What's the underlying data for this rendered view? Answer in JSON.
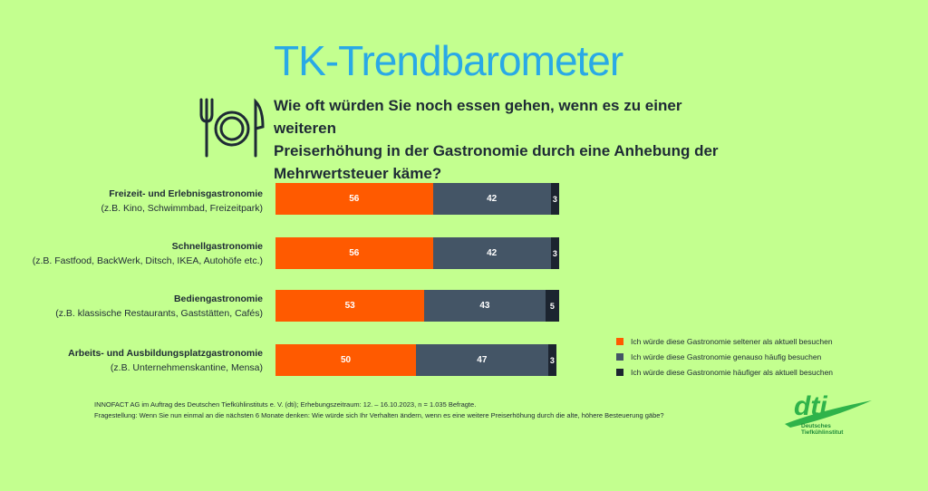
{
  "title": "TK-Trendbarometer",
  "question_lines": [
    "Wie oft würden Sie noch essen gehen, wenn es zu einer weiteren",
    "Preiserhöhung in der Gastronomie durch eine Anhebung der",
    "Mehrwertsteuer käme?"
  ],
  "icon": "plate-fork-knife-icon",
  "colors": {
    "background": "#c3ff8f",
    "title": "#29a9e6",
    "seltener": "#ff5a00",
    "genauso": "#445566",
    "haeufiger": "#1c2430"
  },
  "chart_data": {
    "type": "bar",
    "orientation": "horizontal",
    "stacked": true,
    "unit": "%",
    "categories": [
      {
        "main": "Freizeit- und Erlebnisgastronomie",
        "sub": "(z.B. Kino, Schwimmbad, Freizeitpark)"
      },
      {
        "main": "Schnellgastronomie",
        "sub": "(z.B. Fastfood, BackWerk, Ditsch, IKEA, Autohöfe etc.)"
      },
      {
        "main": "Bediengastronomie",
        "sub": "(z.B. klassische Restaurants, Gaststätten, Cafés)"
      },
      {
        "main": "Arbeits- und Ausbildungsplatzgastronomie",
        "sub": "(z.B. Unternehmenskantine, Mensa)"
      }
    ],
    "series": [
      {
        "name": "Ich würde diese Gastronomie seltener als aktuell besuchen",
        "values": [
          56,
          56,
          53,
          50
        ]
      },
      {
        "name": "Ich würde diese Gastronomie genauso häufig besuchen",
        "values": [
          42,
          42,
          43,
          47
        ]
      },
      {
        "name": "Ich würde diese Gastronomie häufiger als aktuell besuchen",
        "values": [
          3,
          3,
          5,
          3
        ]
      }
    ],
    "legend_position": "right"
  },
  "notes": [
    "INNOFACT AG im Auftrag des Deutschen Tiefkühlinstituts e. V. (dti); Erhebungszeitraum: 12. – 16.10.2023, n = 1.035 Befragte.",
    "Fragestellung: Wenn Sie nun einmal an die nächsten 6 Monate denken: Wie würde sich Ihr Verhalten ändern, wenn es eine weitere Preiserhöhung durch die alte, höhere Besteuerung gäbe?"
  ],
  "logo": {
    "mark": "dti",
    "line1": "Deutsches",
    "line2": "Tiefkühlinstitut"
  }
}
